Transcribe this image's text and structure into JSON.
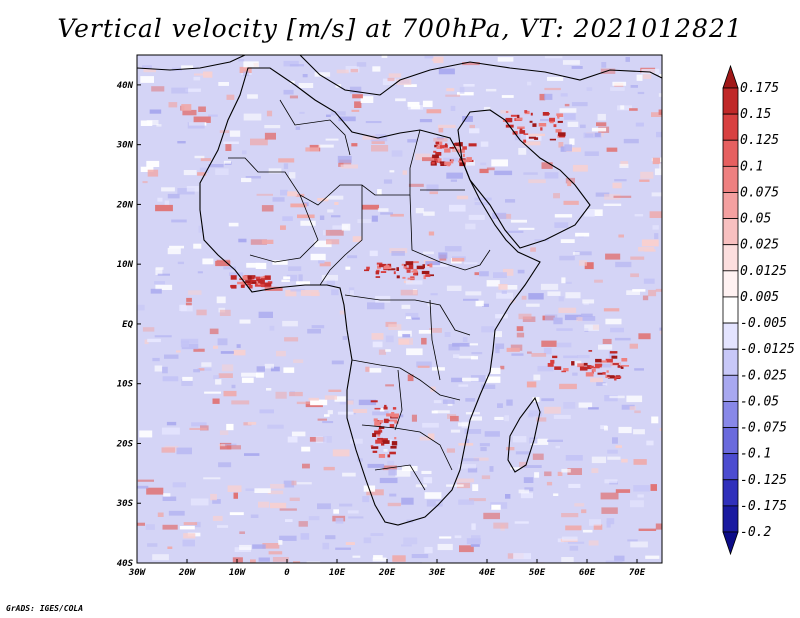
{
  "title": "Vertical velocity [m/s] at 700hPa, VT: 2021012821",
  "footer": "GrADS: IGES/COLA",
  "map": {
    "lon_range": [
      -30,
      75
    ],
    "lat_range": [
      -40,
      45
    ],
    "x_ticks": [
      {
        "lon": -30,
        "label": "30W"
      },
      {
        "lon": -20,
        "label": "20W"
      },
      {
        "lon": -10,
        "label": "10W"
      },
      {
        "lon": 0,
        "label": "0"
      },
      {
        "lon": 10,
        "label": "10E"
      },
      {
        "lon": 20,
        "label": "20E"
      },
      {
        "lon": 30,
        "label": "30E"
      },
      {
        "lon": 40,
        "label": "40E"
      },
      {
        "lon": 50,
        "label": "50E"
      },
      {
        "lon": 60,
        "label": "60E"
      },
      {
        "lon": 70,
        "label": "70E"
      }
    ],
    "y_ticks": [
      {
        "lat": 40,
        "label": "40N"
      },
      {
        "lat": 30,
        "label": "30N"
      },
      {
        "lat": 20,
        "label": "20N"
      },
      {
        "lat": 10,
        "label": "10N"
      },
      {
        "lat": 0,
        "label": "EQ"
      },
      {
        "lat": -10,
        "label": "10S"
      },
      {
        "lat": -20,
        "label": "20S"
      },
      {
        "lat": -30,
        "label": "30S"
      },
      {
        "lat": -40,
        "label": "40S"
      }
    ]
  },
  "colorbar": {
    "levels": [
      "0.175",
      "0.15",
      "0.125",
      "0.1",
      "0.075",
      "0.05",
      "0.025",
      "0.0125",
      "0.005",
      "-0.005",
      "-0.0125",
      "-0.025",
      "-0.05",
      "-0.075",
      "-0.1",
      "-0.125",
      "-0.175",
      "-0.2"
    ],
    "colors": [
      "#a01818",
      "#c02828",
      "#d84040",
      "#e66060",
      "#ee8080",
      "#f4a0a0",
      "#f8c0c0",
      "#fcdede",
      "#fff2f2",
      "#ffffff",
      "#e4e4ff",
      "#c8c8f8",
      "#a8a8f0",
      "#8888e8",
      "#6a6add",
      "#4c4cd0",
      "#3030bb",
      "#1a1aa0",
      "#0c0c88"
    ]
  },
  "colors": {
    "ocean": "#d4d4f6",
    "land": "#cfcff3",
    "border": "#000000"
  }
}
